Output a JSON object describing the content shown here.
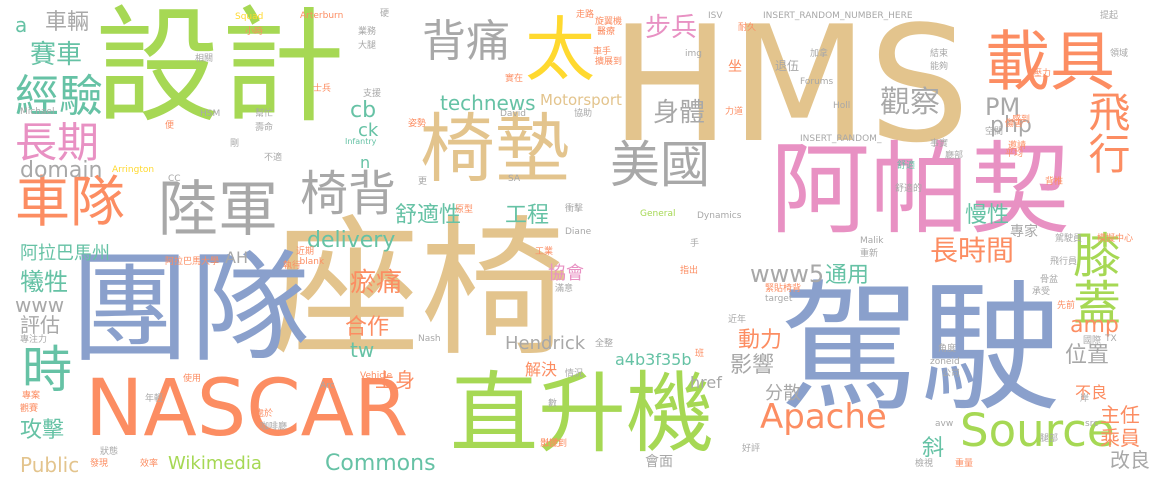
{
  "palette": {
    "tan": "#e3c48d",
    "blue": "#8aa0cc",
    "pink": "#e891c3",
    "green": "#a6d854",
    "orange": "#fc8d62",
    "teal": "#66c2a5",
    "gray": "#a8a8a8",
    "yellow": "#ffd92f"
  },
  "words": [
    {
      "text": "座椅",
      "color": "tan"
    },
    {
      "text": "HMS",
      "color": "tan"
    },
    {
      "text": "設計",
      "color": "green"
    },
    {
      "text": "駕駛",
      "color": "blue"
    },
    {
      "text": "團隊",
      "color": "blue"
    },
    {
      "text": "阿帕契",
      "color": "pink"
    },
    {
      "text": "直升機",
      "color": "green"
    },
    {
      "text": "NASCAR",
      "color": "orange"
    },
    {
      "text": "椅墊",
      "color": "tan"
    },
    {
      "text": "載具",
      "color": "orange"
    },
    {
      "text": "陸軍",
      "color": "gray"
    },
    {
      "text": "車隊",
      "color": "orange"
    },
    {
      "text": "美國",
      "color": "gray"
    },
    {
      "text": "太",
      "color": "yellow"
    },
    {
      "text": "背痛",
      "color": "gray"
    },
    {
      "text": "椅背",
      "color": "gray"
    },
    {
      "text": "經驗",
      "color": "teal"
    },
    {
      "text": "長期",
      "color": "pink"
    },
    {
      "text": "飛行",
      "color": "orange"
    },
    {
      "text": "膝蓋",
      "color": "green"
    },
    {
      "text": "Source",
      "color": "green"
    },
    {
      "text": "Apache",
      "color": "orange"
    },
    {
      "text": "時",
      "color": "teal"
    },
    {
      "text": "觀察",
      "color": "gray"
    },
    {
      "text": "步兵",
      "color": "pink"
    },
    {
      "text": "車輛",
      "color": "gray"
    },
    {
      "text": "賽車",
      "color": "teal"
    },
    {
      "text": "technews",
      "color": "teal"
    },
    {
      "text": "舒適性",
      "color": "teal"
    },
    {
      "text": "工程",
      "color": "teal"
    },
    {
      "text": "身體",
      "color": "gray"
    },
    {
      "text": "長時間",
      "color": "orange"
    },
    {
      "text": "domain",
      "color": "gray"
    },
    {
      "text": "阿拉巴馬州",
      "color": "teal"
    },
    {
      "text": "delivery",
      "color": "teal"
    },
    {
      "text": "PM",
      "color": "gray"
    },
    {
      "text": "php",
      "color": "gray"
    },
    {
      "text": "cb",
      "color": "teal"
    },
    {
      "text": "ck",
      "color": "teal"
    },
    {
      "text": "慢性",
      "color": "teal"
    },
    {
      "text": "犧牲",
      "color": "teal"
    },
    {
      "text": "www",
      "color": "gray"
    },
    {
      "text": "評估",
      "color": "gray"
    },
    {
      "text": "瘀痛",
      "color": "orange"
    },
    {
      "text": "合作",
      "color": "orange"
    },
    {
      "text": "www5",
      "color": "gray"
    },
    {
      "text": "通用",
      "color": "teal"
    },
    {
      "text": "協會",
      "color": "pink"
    },
    {
      "text": "動力",
      "color": "orange"
    },
    {
      "text": "tw",
      "color": "teal"
    },
    {
      "text": "Hendrick",
      "color": "gray"
    },
    {
      "text": "a4b3f35b",
      "color": "teal"
    },
    {
      "text": "影響",
      "color": "gray"
    },
    {
      "text": "位置",
      "color": "gray"
    },
    {
      "text": "amp",
      "color": "orange"
    },
    {
      "text": "分散",
      "color": "gray"
    },
    {
      "text": "上身",
      "color": "orange"
    },
    {
      "text": "攻擊",
      "color": "teal"
    },
    {
      "text": "Public",
      "color": "tan"
    },
    {
      "text": "Wikimedia",
      "color": "green"
    },
    {
      "text": "Commons",
      "color": "teal"
    },
    {
      "text": "斜",
      "color": "teal"
    },
    {
      "text": "改良",
      "color": "gray"
    },
    {
      "text": "主任",
      "color": "orange"
    },
    {
      "text": "乘員",
      "color": "orange"
    },
    {
      "text": "不良",
      "color": "orange"
    },
    {
      "text": "專家",
      "color": "gray"
    },
    {
      "text": "解決",
      "color": "orange"
    },
    {
      "text": "href",
      "color": "gray"
    },
    {
      "text": "Motorsport",
      "color": "tan"
    },
    {
      "text": "會面",
      "color": "gray"
    },
    {
      "text": "a",
      "color": "teal"
    },
    {
      "text": "n",
      "color": "teal"
    },
    {
      "text": "AH",
      "color": "gray"
    },
    {
      "text": "INSERT_RANDOM_NUMBER_HERE",
      "color": "gray"
    },
    {
      "text": "INSERT_RANDOM_",
      "color": "gray"
    },
    {
      "text": "Squad",
      "color": "yellow"
    },
    {
      "text": "Arterburn",
      "color": "orange"
    },
    {
      "text": "Forums",
      "color": "gray"
    },
    {
      "text": "HSM",
      "color": "gray"
    },
    {
      "text": "Michael",
      "color": "gray"
    },
    {
      "text": "Infantry",
      "color": "teal"
    },
    {
      "text": "Arrington",
      "color": "yellow"
    },
    {
      "text": "General",
      "color": "green"
    },
    {
      "text": "Dynamics",
      "color": "gray"
    },
    {
      "text": "Malik",
      "color": "gray"
    },
    {
      "text": "target",
      "color": "gray"
    },
    {
      "text": "Nash",
      "color": "gray"
    },
    {
      "text": "Vehicle",
      "color": "orange"
    },
    {
      "text": "Arc",
      "color": "gray"
    },
    {
      "text": "David",
      "color": "gray"
    },
    {
      "text": "Diane",
      "color": "gray"
    },
    {
      "text": "Holl",
      "color": "gray"
    },
    {
      "text": "ISV",
      "color": "gray"
    },
    {
      "text": "img",
      "color": "gray"
    },
    {
      "text": "zoneid",
      "color": "gray"
    },
    {
      "text": "src",
      "color": "gray"
    },
    {
      "text": "avw",
      "color": "gray"
    },
    {
      "text": "_blank",
      "color": "orange"
    },
    {
      "text": "CC",
      "color": "gray"
    },
    {
      "text": "SA",
      "color": "gray"
    },
    {
      "text": "TX",
      "color": "gray"
    },
    {
      "text": "退伍",
      "color": "gray"
    },
    {
      "text": "坐",
      "color": "orange"
    },
    {
      "text": "小時",
      "color": "orange"
    },
    {
      "text": "業務",
      "color": "gray"
    },
    {
      "text": "大腿",
      "color": "gray"
    },
    {
      "text": "相關",
      "color": "gray"
    },
    {
      "text": "支援",
      "color": "gray"
    },
    {
      "text": "協助",
      "color": "gray"
    },
    {
      "text": "姿勢",
      "color": "orange"
    },
    {
      "text": "實在",
      "color": "orange"
    },
    {
      "text": "擴展到",
      "color": "orange"
    },
    {
      "text": "醫療",
      "color": "orange"
    },
    {
      "text": "旋翼機",
      "color": "orange"
    },
    {
      "text": "走路",
      "color": "orange"
    },
    {
      "text": "耐久",
      "color": "orange"
    },
    {
      "text": "幫忙",
      "color": "gray"
    },
    {
      "text": "壽命",
      "color": "gray"
    },
    {
      "text": "不適",
      "color": "gray"
    },
    {
      "text": "傷害",
      "color": "orange"
    },
    {
      "text": "平均",
      "color": "orange"
    },
    {
      "text": "感到",
      "color": "orange"
    },
    {
      "text": "空間",
      "color": "gray"
    },
    {
      "text": "事實",
      "color": "gray"
    },
    {
      "text": "舒適",
      "color": "teal"
    },
    {
      "text": "背椎",
      "color": "orange"
    },
    {
      "text": "模擬中心",
      "color": "orange"
    },
    {
      "text": "駕駛員",
      "color": "gray"
    },
    {
      "text": "飛行員",
      "color": "gray"
    },
    {
      "text": "指出",
      "color": "orange"
    },
    {
      "text": "執行",
      "color": "orange"
    },
    {
      "text": "近期",
      "color": "orange"
    },
    {
      "text": "原型",
      "color": "orange"
    },
    {
      "text": "衝擊",
      "color": "gray"
    },
    {
      "text": "滿意",
      "color": "gray"
    },
    {
      "text": "情況",
      "color": "gray"
    },
    {
      "text": "出力",
      "color": "orange"
    },
    {
      "text": "效率",
      "color": "orange"
    },
    {
      "text": "發現",
      "color": "orange"
    },
    {
      "text": "狀態",
      "color": "gray"
    },
    {
      "text": "處於",
      "color": "orange"
    },
    {
      "text": "咖啡廳",
      "color": "gray"
    },
    {
      "text": "國際",
      "color": "gray"
    },
    {
      "text": "公司",
      "color": "gray"
    },
    {
      "text": "腿部",
      "color": "gray"
    },
    {
      "text": "檢視",
      "color": "gray"
    },
    {
      "text": "重量",
      "color": "orange"
    },
    {
      "text": "好評",
      "color": "gray"
    },
    {
      "text": "全整",
      "color": "gray"
    },
    {
      "text": "近年",
      "color": "gray"
    },
    {
      "text": "角度",
      "color": "gray"
    },
    {
      "text": "承受",
      "color": "gray"
    },
    {
      "text": "先前",
      "color": "orange"
    },
    {
      "text": "骨盆",
      "color": "gray"
    },
    {
      "text": "緊貼椅背",
      "color": "orange"
    },
    {
      "text": "重新",
      "color": "gray"
    },
    {
      "text": "觀賽",
      "color": "orange"
    },
    {
      "text": "使用",
      "color": "orange"
    },
    {
      "text": "專注力",
      "color": "gray"
    },
    {
      "text": "專案",
      "color": "orange"
    },
    {
      "text": "年輕",
      "color": "gray"
    },
    {
      "text": "工業",
      "color": "orange"
    },
    {
      "text": "阿拉巴馬大學",
      "color": "orange"
    },
    {
      "text": "壓力",
      "color": "orange"
    },
    {
      "text": "加拿",
      "color": "gray"
    },
    {
      "text": "力道",
      "color": "orange"
    },
    {
      "text": "結束",
      "color": "gray"
    },
    {
      "text": "能夠",
      "color": "gray"
    },
    {
      "text": "硬",
      "color": "gray"
    },
    {
      "text": "士兵",
      "color": "orange"
    },
    {
      "text": "更",
      "color": "gray"
    },
    {
      "text": "剛",
      "color": "gray"
    },
    {
      "text": "便",
      "color": "orange"
    },
    {
      "text": "手",
      "color": "gray"
    },
    {
      "text": "班",
      "color": "orange"
    },
    {
      "text": "數",
      "color": "gray"
    },
    {
      "text": "岸",
      "color": "gray"
    },
    {
      "text": "廳部",
      "color": "gray"
    },
    {
      "text": "邀請",
      "color": "orange"
    },
    {
      "text": "領域",
      "color": "gray"
    },
    {
      "text": "提起",
      "color": "gray"
    },
    {
      "text": "車手",
      "color": "orange"
    },
    {
      "text": "舒適的",
      "color": "gray"
    },
    {
      "text": "影響到",
      "color": "orange"
    }
  ]
}
